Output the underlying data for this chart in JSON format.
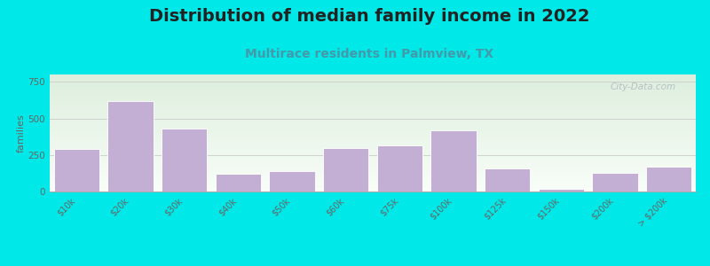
{
  "title": "Distribution of median family income in 2022",
  "subtitle": "Multirace residents in Palmview, TX",
  "categories": [
    "$10k",
    "$20k",
    "$30k",
    "$40k",
    "$50k",
    "$60k",
    "$75k",
    "$100k",
    "$125k",
    "$150k",
    "$200k",
    "> $200k"
  ],
  "values": [
    290,
    620,
    430,
    120,
    140,
    300,
    315,
    420,
    160,
    20,
    130,
    170
  ],
  "bar_color": "#c4afd4",
  "bar_edgecolor": "white",
  "ylabel": "families",
  "ylim": [
    0,
    800
  ],
  "yticks": [
    0,
    250,
    500,
    750
  ],
  "background_color": "#00e8e8",
  "plot_bg_top_color": "#ddeedd",
  "plot_bg_bottom_color": "#f8fdf8",
  "title_fontsize": 14,
  "subtitle_fontsize": 10,
  "subtitle_color": "#4499aa",
  "watermark": "City-Data.com",
  "grid_color": "#cccccc",
  "tick_color": "#666666",
  "ylabel_fontsize": 8
}
